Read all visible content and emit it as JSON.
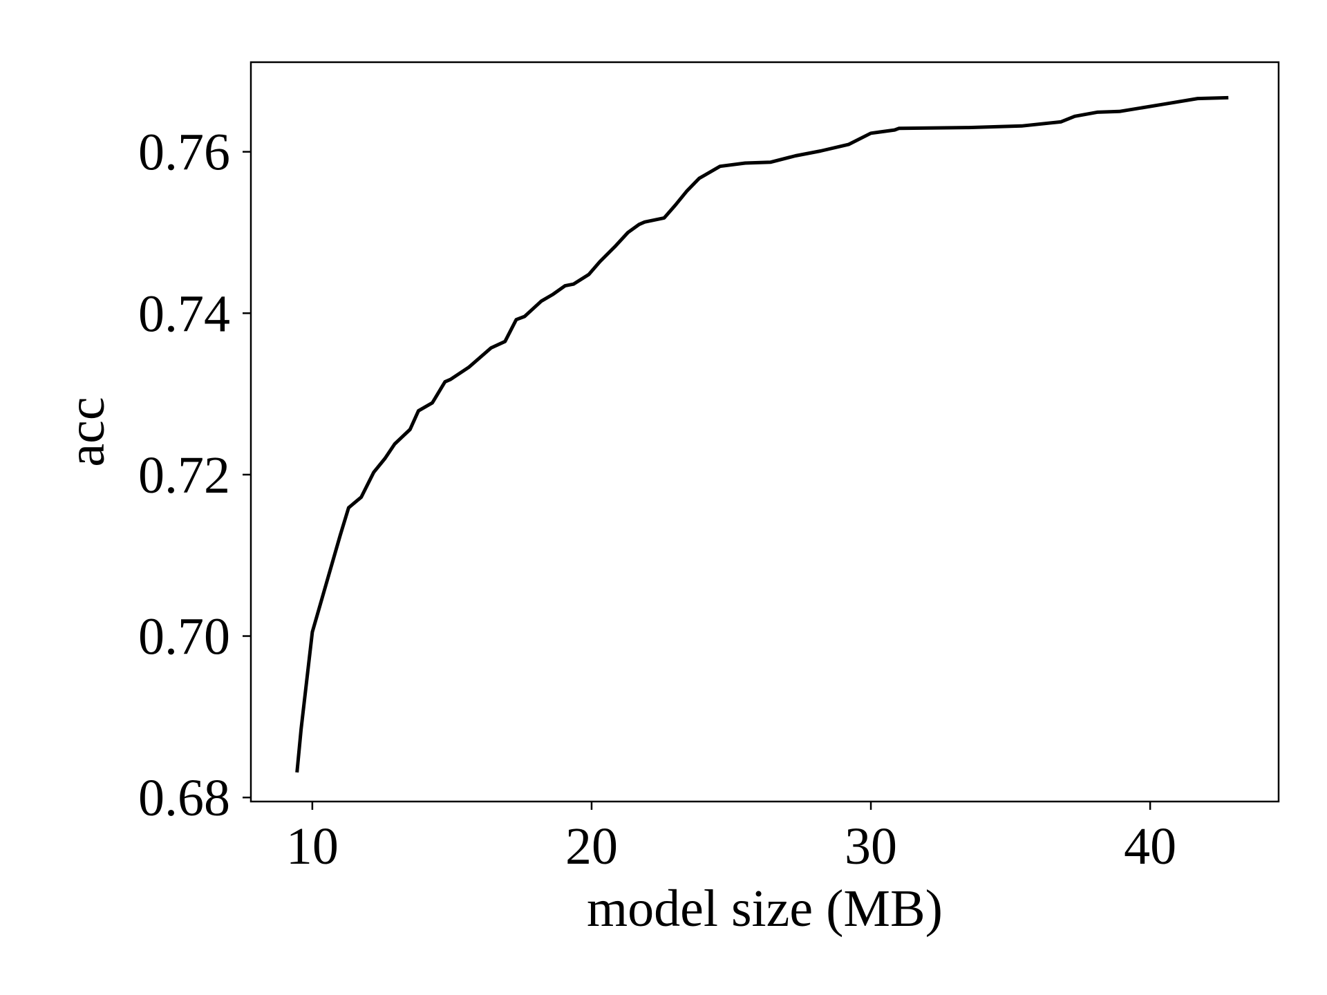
{
  "chart_data": {
    "type": "line",
    "title": "",
    "xlabel": "model size (MB)",
    "ylabel": "acc",
    "xlim": [
      7.8,
      44.6
    ],
    "ylim": [
      0.6795,
      0.7711
    ],
    "xticks": [
      10,
      20,
      30,
      40
    ],
    "xtick_labels": [
      "10",
      "20",
      "30",
      "40"
    ],
    "yticks": [
      0.68,
      0.7,
      0.72,
      0.74,
      0.76
    ],
    "ytick_labels": [
      "0.68",
      "0.70",
      "0.72",
      "0.74",
      "0.76"
    ],
    "grid": false,
    "legend": "none",
    "series": [
      {
        "color": "#000000",
        "x": [
          9.45,
          9.6,
          10.0,
          10.5,
          11.0,
          11.3,
          11.75,
          12.2,
          12.6,
          12.95,
          13.5,
          13.8,
          14.3,
          14.75,
          14.95,
          15.6,
          16.4,
          16.9,
          17.3,
          17.6,
          18.2,
          18.6,
          19.05,
          19.35,
          19.9,
          20.3,
          20.85,
          21.3,
          21.7,
          21.9,
          22.6,
          23.0,
          23.4,
          23.85,
          24.6,
          25.5,
          26.4,
          27.3,
          28.2,
          29.2,
          30.0,
          30.85,
          31.0,
          33.5,
          35.4,
          36.8,
          37.3,
          38.1,
          38.9,
          40.5,
          41.7,
          42.8
        ],
        "y": [
          0.6831,
          0.6885,
          0.7005,
          0.7065,
          0.7125,
          0.7159,
          0.7172,
          0.7203,
          0.722,
          0.7238,
          0.7256,
          0.7279,
          0.7289,
          0.7315,
          0.7318,
          0.7333,
          0.7357,
          0.7365,
          0.7392,
          0.7396,
          0.7415,
          0.7423,
          0.7434,
          0.7436,
          0.7448,
          0.7464,
          0.7483,
          0.75,
          0.751,
          0.7513,
          0.7518,
          0.7534,
          0.7551,
          0.7567,
          0.7582,
          0.7586,
          0.7587,
          0.7595,
          0.7601,
          0.7609,
          0.7623,
          0.7627,
          0.7629,
          0.763,
          0.7632,
          0.7637,
          0.7644,
          0.7649,
          0.765,
          0.7659,
          0.7666,
          0.7667
        ]
      }
    ]
  }
}
